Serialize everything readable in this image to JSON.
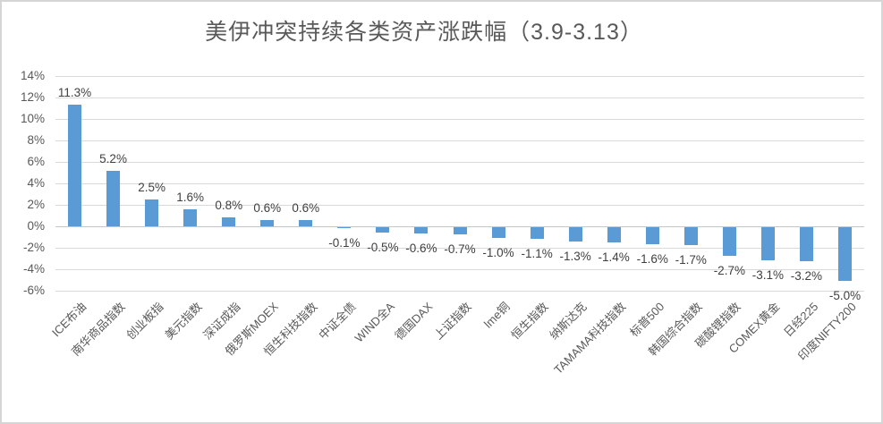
{
  "chart_data": {
    "type": "bar",
    "title": "美伊冲突持续各类资产涨跌幅（3.9-3.13）",
    "categories": [
      "ICE布油",
      "南华商品指数",
      "创业板指",
      "美元指数",
      "深证成指",
      "俄罗斯MOEX",
      "恒生科技指数",
      "中证全债",
      "WIND全A",
      "德国DAX",
      "上证指数",
      "lme铜",
      "恒生指数",
      "纳斯达克",
      "TAMAMA科技指数",
      "标普500",
      "韩国综合指数",
      "碳酸锂指数",
      "COMEX黄金",
      "日经225",
      "印度NIFTY200"
    ],
    "values": [
      11.3,
      5.2,
      2.5,
      1.6,
      0.8,
      0.6,
      0.6,
      -0.1,
      -0.5,
      -0.6,
      -0.7,
      -1.0,
      -1.1,
      -1.3,
      -1.4,
      -1.6,
      -1.7,
      -2.7,
      -3.1,
      -3.2,
      -5.0
    ],
    "value_labels": [
      "11.3%",
      "5.2%",
      "2.5%",
      "1.6%",
      "0.8%",
      "0.6%",
      "0.6%",
      "-0.1%",
      "-0.5%",
      "-0.6%",
      "-0.7%",
      "-1.0%",
      "-1.1%",
      "-1.3%",
      "-1.4%",
      "-1.6%",
      "-1.7%",
      "-2.7%",
      "-3.1%",
      "-3.2%",
      "-5.0%"
    ],
    "y_ticks": [
      "14%",
      "12%",
      "10%",
      "8%",
      "6%",
      "4%",
      "2%",
      "0%",
      "-2%",
      "-4%",
      "-6%"
    ],
    "ylim": [
      -6,
      14
    ],
    "y_step": 2,
    "xlabel": "",
    "ylabel": "",
    "grid": true,
    "legend": "none",
    "bar_color": "#5b9bd5",
    "gridline_color": "#d9d9d9",
    "axis_text_color": "#595959",
    "data_label_color": "#404040",
    "background_color": "#ffffff",
    "border_color": "#d5d5d5"
  }
}
